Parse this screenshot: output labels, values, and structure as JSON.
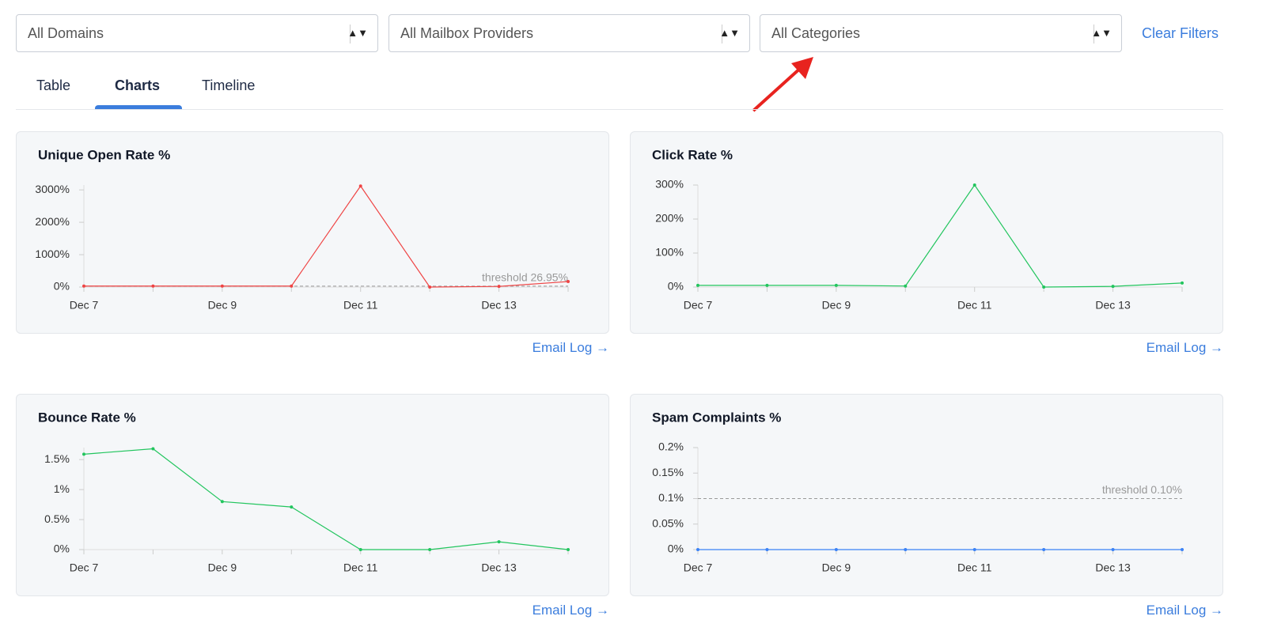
{
  "filters": [
    "All Domains",
    "All Mailbox Providers",
    "All Categories"
  ],
  "clear_filters": "Clear Filters",
  "tabs": [
    "Table",
    "Charts",
    "Timeline"
  ],
  "active_tab": 1,
  "chart_data": [
    {
      "type": "line",
      "title": "Unique Open Rate %",
      "categories": [
        "Dec 7",
        null,
        "Dec 9",
        null,
        "Dec 11",
        null,
        "Dec 13",
        null
      ],
      "series": [
        {
          "color": "#ef4444",
          "values": [
            30,
            30,
            30,
            30,
            3120,
            0,
            20,
            170
          ]
        }
      ],
      "ylim": [
        0,
        3150
      ],
      "yticks": [
        {
          "value": 0,
          "label": "0%"
        },
        {
          "value": 1000,
          "label": "1000%"
        },
        {
          "value": 2000,
          "label": "2000%"
        },
        {
          "value": 3000,
          "label": "3000%"
        }
      ],
      "threshold": {
        "value": 26.95,
        "label": "threshold 26.95%"
      },
      "link": "Email Log →"
    },
    {
      "type": "line",
      "title": "Click Rate %",
      "categories": [
        "Dec 7",
        null,
        "Dec 9",
        null,
        "Dec 11",
        null,
        "Dec 13",
        null
      ],
      "series": [
        {
          "color": "#22c55e",
          "values": [
            5,
            5,
            5,
            3,
            300,
            0,
            2,
            12
          ]
        }
      ],
      "ylim": [
        0,
        300
      ],
      "yticks": [
        {
          "value": 0,
          "label": "0%"
        },
        {
          "value": 100,
          "label": "100%"
        },
        {
          "value": 200,
          "label": "200%"
        },
        {
          "value": 300,
          "label": "300%"
        }
      ],
      "link": "Email Log →"
    },
    {
      "type": "line",
      "title": "Bounce Rate %",
      "categories": [
        "Dec 7",
        null,
        "Dec 9",
        null,
        "Dec 11",
        null,
        "Dec 13",
        null
      ],
      "series": [
        {
          "color": "#22c55e",
          "values": [
            1.59,
            1.68,
            0.8,
            0.71,
            0,
            0,
            0.13,
            0
          ]
        }
      ],
      "ylim": [
        0,
        1.7
      ],
      "yticks": [
        {
          "value": 0,
          "label": "0%"
        },
        {
          "value": 0.5,
          "label": "0.5%"
        },
        {
          "value": 1,
          "label": "1%"
        },
        {
          "value": 1.5,
          "label": "1.5%"
        }
      ],
      "link": "Email Log →"
    },
    {
      "type": "line",
      "title": "Spam Complaints %",
      "categories": [
        "Dec 7",
        null,
        "Dec 9",
        null,
        "Dec 11",
        null,
        "Dec 13",
        null
      ],
      "series": [
        {
          "color": "#3b82f6",
          "values": [
            0,
            0,
            0,
            0,
            0,
            0,
            0,
            0
          ]
        }
      ],
      "ylim": [
        0,
        0.2
      ],
      "yticks": [
        {
          "value": 0,
          "label": "0%"
        },
        {
          "value": 0.05,
          "label": "0.05%"
        },
        {
          "value": 0.1,
          "label": "0.1%"
        },
        {
          "value": 0.15,
          "label": "0.15%"
        },
        {
          "value": 0.2,
          "label": "0.2%"
        }
      ],
      "threshold": {
        "value": 0.1,
        "label": "threshold 0.10%"
      },
      "link": "Email Log →"
    }
  ]
}
